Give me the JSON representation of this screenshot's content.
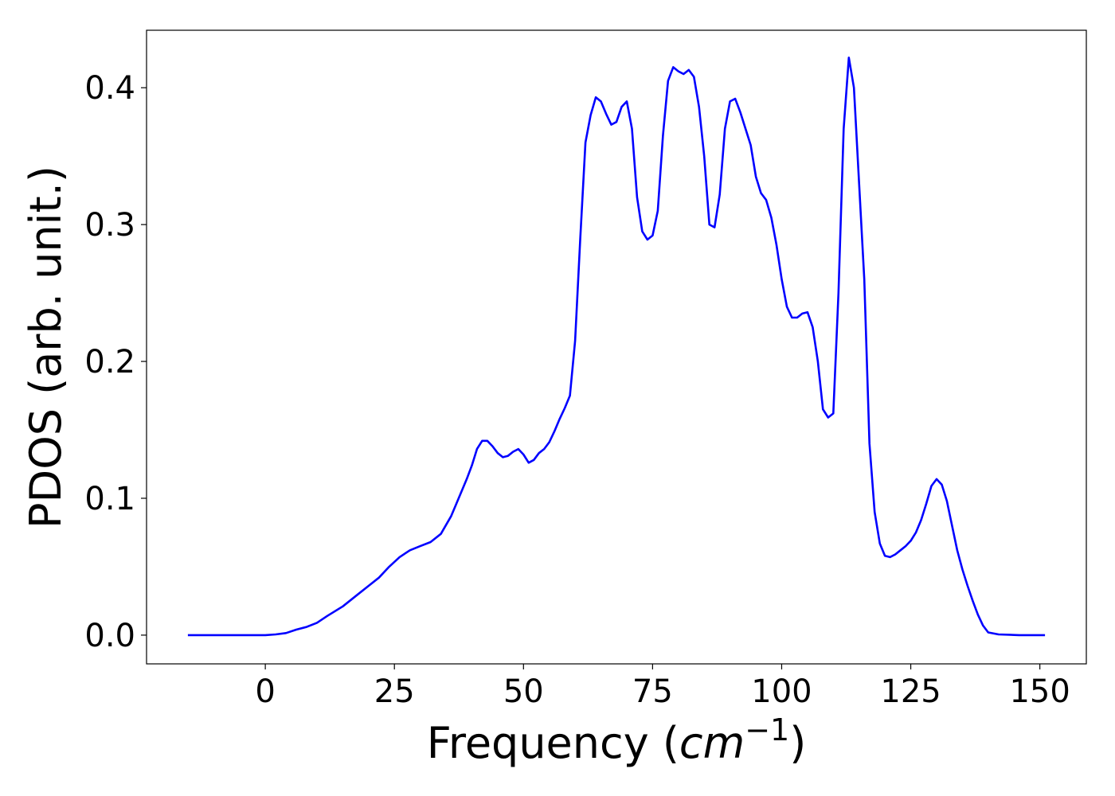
{
  "chart_data": {
    "type": "line",
    "title": "",
    "xlabel": "Frequency",
    "xlabel_unit_base": "cm",
    "xlabel_unit_exp": "−1",
    "ylabel": "PDOS (arb. unit.)",
    "xlim": [
      -23,
      159
    ],
    "ylim": [
      -0.021,
      0.442
    ],
    "xticks": [
      0,
      25,
      50,
      75,
      100,
      125,
      150
    ],
    "yticks": [
      0.0,
      0.1,
      0.2,
      0.3,
      0.4
    ],
    "ytick_labels": [
      "0.0",
      "0.1",
      "0.2",
      "0.3",
      "0.4"
    ],
    "grid": false,
    "line_color": "#0000ff",
    "series": [
      {
        "x": [
          -15,
          -5,
          0,
          2,
          4,
          6,
          8,
          10,
          12,
          15,
          18,
          20,
          22,
          24,
          26,
          28,
          30,
          32,
          34,
          36,
          38,
          39,
          40,
          41,
          42,
          43,
          44,
          45,
          46,
          47,
          48,
          49,
          50,
          51,
          52,
          53,
          54,
          55,
          56,
          57,
          58,
          59,
          60,
          61,
          62,
          63,
          64,
          65,
          66,
          67,
          68,
          69,
          70,
          71,
          72,
          73,
          74,
          75,
          76,
          77,
          78,
          79,
          80,
          81,
          82,
          83,
          84,
          85,
          86,
          87,
          88,
          89,
          90,
          91,
          92,
          93,
          94,
          95,
          96,
          97,
          98,
          99,
          100,
          101,
          102,
          103,
          104,
          105,
          106,
          107,
          108,
          109,
          110,
          111,
          112,
          113,
          114,
          115,
          116,
          117,
          118,
          119,
          120,
          121,
          122,
          123,
          124,
          125,
          126,
          127,
          128,
          129,
          130,
          131,
          132,
          133,
          134,
          135,
          136,
          137,
          138,
          139,
          140,
          142,
          146,
          151
        ],
        "y": [
          0.0,
          0.0,
          0.0,
          0.0005,
          0.0015,
          0.004,
          0.006,
          0.009,
          0.014,
          0.021,
          0.03,
          0.036,
          0.042,
          0.05,
          0.057,
          0.062,
          0.065,
          0.068,
          0.074,
          0.087,
          0.105,
          0.114,
          0.124,
          0.136,
          0.142,
          0.142,
          0.138,
          0.133,
          0.13,
          0.131,
          0.134,
          0.136,
          0.132,
          0.126,
          0.128,
          0.133,
          0.136,
          0.141,
          0.149,
          0.158,
          0.166,
          0.175,
          0.215,
          0.29,
          0.36,
          0.38,
          0.393,
          0.39,
          0.381,
          0.373,
          0.375,
          0.386,
          0.39,
          0.37,
          0.32,
          0.295,
          0.289,
          0.292,
          0.31,
          0.365,
          0.405,
          0.415,
          0.412,
          0.41,
          0.413,
          0.408,
          0.386,
          0.35,
          0.3,
          0.298,
          0.322,
          0.37,
          0.39,
          0.392,
          0.382,
          0.37,
          0.358,
          0.335,
          0.323,
          0.318,
          0.305,
          0.285,
          0.26,
          0.24,
          0.232,
          0.232,
          0.235,
          0.236,
          0.225,
          0.2,
          0.165,
          0.159,
          0.162,
          0.25,
          0.37,
          0.422,
          0.4,
          0.33,
          0.26,
          0.14,
          0.09,
          0.067,
          0.058,
          0.057,
          0.059,
          0.062,
          0.065,
          0.069,
          0.075,
          0.084,
          0.096,
          0.109,
          0.114,
          0.11,
          0.098,
          0.08,
          0.062,
          0.048,
          0.036,
          0.025,
          0.015,
          0.007,
          0.002,
          0.0005,
          0.0,
          0.0
        ]
      }
    ]
  }
}
